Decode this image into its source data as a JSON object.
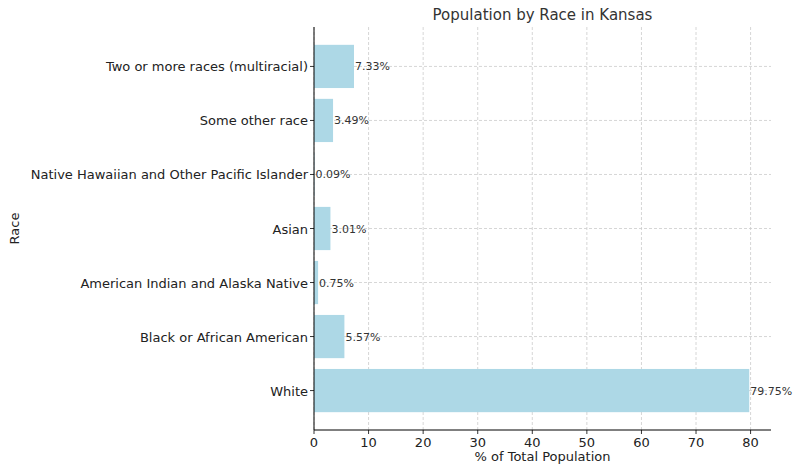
{
  "chart_data": {
    "type": "bar",
    "orientation": "horizontal",
    "title": "Population by Race in Kansas",
    "x_label": "% of Total Population",
    "y_label": "Race",
    "categories": [
      "White",
      "Black or African American",
      "American Indian and Alaska Native",
      "Asian",
      "Native Hawaiian and Other Pacific Islander",
      "Some other race",
      "Two or more races (multiracial)"
    ],
    "values": [
      79.75,
      5.57,
      0.75,
      3.01,
      0.09,
      3.49,
      7.33
    ],
    "value_labels": [
      "79.75%",
      "5.57%",
      "0.75%",
      "3.01%",
      "0.09%",
      "3.49%",
      "7.33%"
    ],
    "data_labels": true,
    "color": "#add8e6",
    "xlim": [
      0,
      83.74
    ],
    "xticks": [
      0,
      10,
      20,
      30,
      40,
      50,
      60,
      70,
      80
    ],
    "grid": true
  }
}
